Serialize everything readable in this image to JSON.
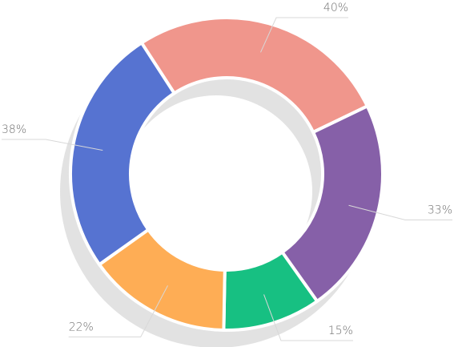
{
  "chart_data": {
    "type": "donut",
    "values": [
      40,
      33,
      15,
      22,
      38
    ],
    "value_labels": [
      "40%",
      "33%",
      "15%",
      "22%",
      "38%"
    ],
    "colors": [
      "#f0968c",
      "#8660a8",
      "#17c082",
      "#fead55",
      "#5673d1"
    ]
  }
}
